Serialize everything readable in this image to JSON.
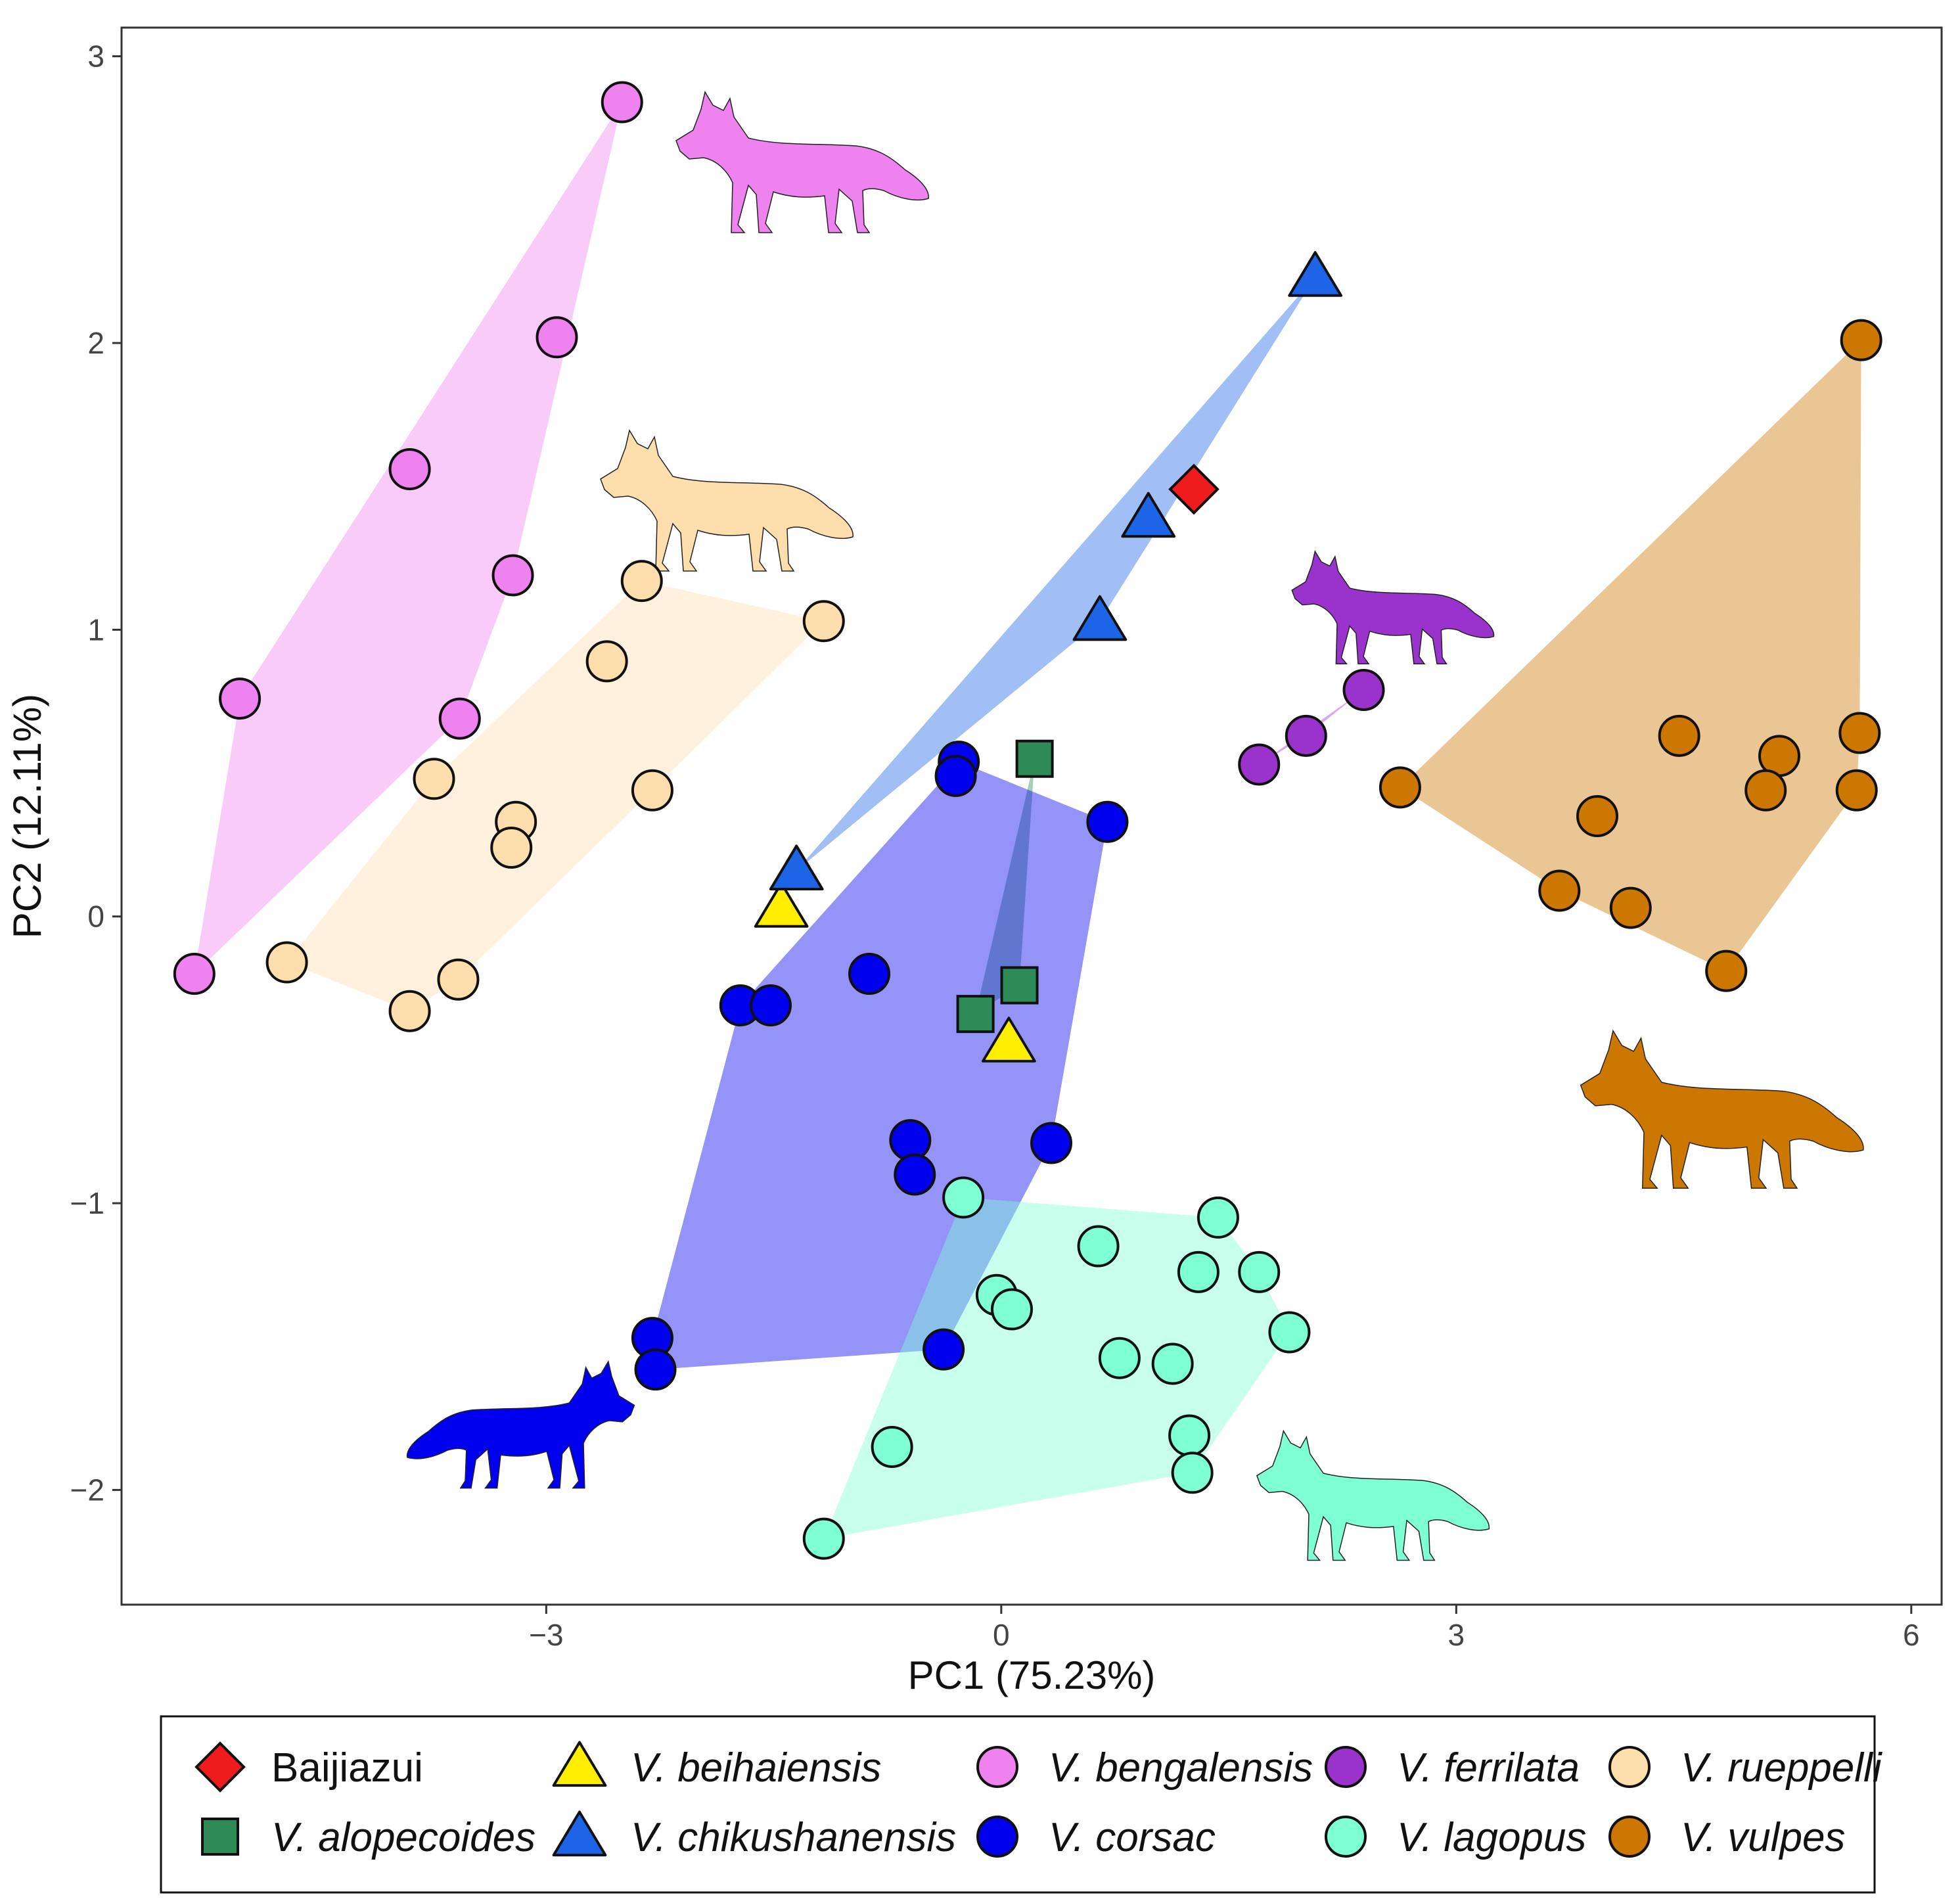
{
  "chart_data": {
    "type": "scatter",
    "title": "",
    "xlabel": "PC1 (75.23%)",
    "ylabel": "PC2 (12.11%)",
    "xlim": [
      -5.8,
      6.2
    ],
    "ylim": [
      -2.4,
      3.1
    ],
    "xticks": [
      -3,
      0,
      3,
      6
    ],
    "yticks": [
      -2,
      -1,
      0,
      1,
      2,
      3
    ],
    "xtick_labels": [
      "−3",
      "0",
      "3",
      "6"
    ],
    "ytick_labels": [
      "−2",
      "−1",
      "0",
      "1",
      "2",
      "3"
    ],
    "grid": false,
    "legend_position": "bottom",
    "series": [
      {
        "name": "Baijiazui",
        "italic": false,
        "marker": "diamond",
        "color": "#ee1c1c",
        "hull": false,
        "points": [
          [
            1.27,
            1.49
          ]
        ]
      },
      {
        "name": "V. alopecoides",
        "italic": true,
        "marker": "square",
        "color": "#2e8b57",
        "hull": true,
        "points": [
          [
            0.22,
            0.55
          ],
          [
            0.12,
            -0.24
          ],
          [
            -0.17,
            -0.34
          ]
        ]
      },
      {
        "name": "V. beihaiensis",
        "italic": true,
        "marker": "triangle",
        "color": "#ffee00",
        "hull": false,
        "points": [
          [
            -1.45,
            0.03
          ],
          [
            0.05,
            -0.44
          ]
        ]
      },
      {
        "name": "V. chikushanensis",
        "italic": true,
        "marker": "triangle",
        "color": "#1e64e6",
        "hull": true,
        "points": [
          [
            2.07,
            2.23
          ],
          [
            0.97,
            1.39
          ],
          [
            0.65,
            1.03
          ],
          [
            -1.35,
            0.16
          ]
        ]
      },
      {
        "name": "V. bengalensis",
        "italic": true,
        "marker": "circle",
        "color": "#ee82ee",
        "hull": true,
        "points": [
          [
            -2.5,
            2.84
          ],
          [
            -2.93,
            2.02
          ],
          [
            -3.9,
            1.56
          ],
          [
            -3.22,
            1.19
          ],
          [
            -5.02,
            0.76
          ],
          [
            -3.57,
            0.69
          ],
          [
            -5.32,
            -0.2
          ]
        ]
      },
      {
        "name": "V. corsac",
        "italic": true,
        "marker": "circle",
        "color": "#0000ee",
        "hull": true,
        "points": [
          [
            -0.28,
            0.54
          ],
          [
            -0.3,
            0.49
          ],
          [
            0.7,
            0.33
          ],
          [
            -0.87,
            -0.2
          ],
          [
            -1.72,
            -0.31
          ],
          [
            -1.52,
            -0.31
          ],
          [
            -0.6,
            -0.78
          ],
          [
            -0.57,
            -0.9
          ],
          [
            0.33,
            -0.79
          ],
          [
            -0.38,
            -1.51
          ],
          [
            -2.3,
            -1.47
          ],
          [
            -2.28,
            -1.58
          ]
        ]
      },
      {
        "name": "V. ferrilata",
        "italic": true,
        "marker": "circle",
        "color": "#9933cc",
        "hull": true,
        "points": [
          [
            2.39,
            0.79
          ],
          [
            2.01,
            0.63
          ],
          [
            1.7,
            0.53
          ]
        ]
      },
      {
        "name": "V. lagopus",
        "italic": true,
        "marker": "circle",
        "color": "#7fffd4",
        "hull": true,
        "points": [
          [
            -0.25,
            -0.98
          ],
          [
            1.43,
            -1.05
          ],
          [
            0.64,
            -1.15
          ],
          [
            1.3,
            -1.24
          ],
          [
            1.7,
            -1.24
          ],
          [
            -0.03,
            -1.32
          ],
          [
            0.07,
            -1.37
          ],
          [
            1.9,
            -1.45
          ],
          [
            0.78,
            -1.54
          ],
          [
            1.13,
            -1.56
          ],
          [
            1.24,
            -1.81
          ],
          [
            1.26,
            -1.94
          ],
          [
            -0.72,
            -1.85
          ],
          [
            -1.17,
            -2.17
          ]
        ]
      },
      {
        "name": "V. rueppelli",
        "italic": true,
        "marker": "circle",
        "color": "#ffdead",
        "hull": true,
        "points": [
          [
            -2.37,
            1.17
          ],
          [
            -1.17,
            1.03
          ],
          [
            -2.6,
            0.89
          ],
          [
            -3.74,
            0.48
          ],
          [
            -2.3,
            0.44
          ],
          [
            -3.2,
            0.33
          ],
          [
            -3.23,
            0.24
          ],
          [
            -4.71,
            -0.16
          ],
          [
            -3.58,
            -0.22
          ],
          [
            -3.9,
            -0.33
          ]
        ]
      },
      {
        "name": "V. vulpes",
        "italic": true,
        "marker": "circle",
        "color": "#cc7700",
        "hull": true,
        "points": [
          [
            5.67,
            2.01
          ],
          [
            4.47,
            0.63
          ],
          [
            5.66,
            0.64
          ],
          [
            5.13,
            0.56
          ],
          [
            2.63,
            0.45
          ],
          [
            5.04,
            0.44
          ],
          [
            5.64,
            0.44
          ],
          [
            3.93,
            0.35
          ],
          [
            3.68,
            0.09
          ],
          [
            4.15,
            0.03
          ],
          [
            4.78,
            -0.19
          ]
        ]
      }
    ],
    "silhouettes": [
      {
        "name": "bengalensis-fox",
        "color": "#ee82ee"
      },
      {
        "name": "rueppelli-fox",
        "color": "#ffdead"
      },
      {
        "name": "ferrilata-fox",
        "color": "#9933cc"
      },
      {
        "name": "vulpes-fox",
        "color": "#cc7700"
      },
      {
        "name": "corsac-fox",
        "color": "#0000ee"
      },
      {
        "name": "lagopus-fox",
        "color": "#7fffd4"
      }
    ],
    "legend": {
      "columns": [
        [
          "Baijiazui",
          "V. alopecoides"
        ],
        [
          "V. beihaiensis",
          "V. chikushanensis"
        ],
        [
          "V. bengalensis",
          "V. corsac"
        ],
        [
          "V. ferrilata",
          "V. lagopus"
        ],
        [
          "V. rueppelli",
          "V. vulpes"
        ]
      ]
    }
  }
}
